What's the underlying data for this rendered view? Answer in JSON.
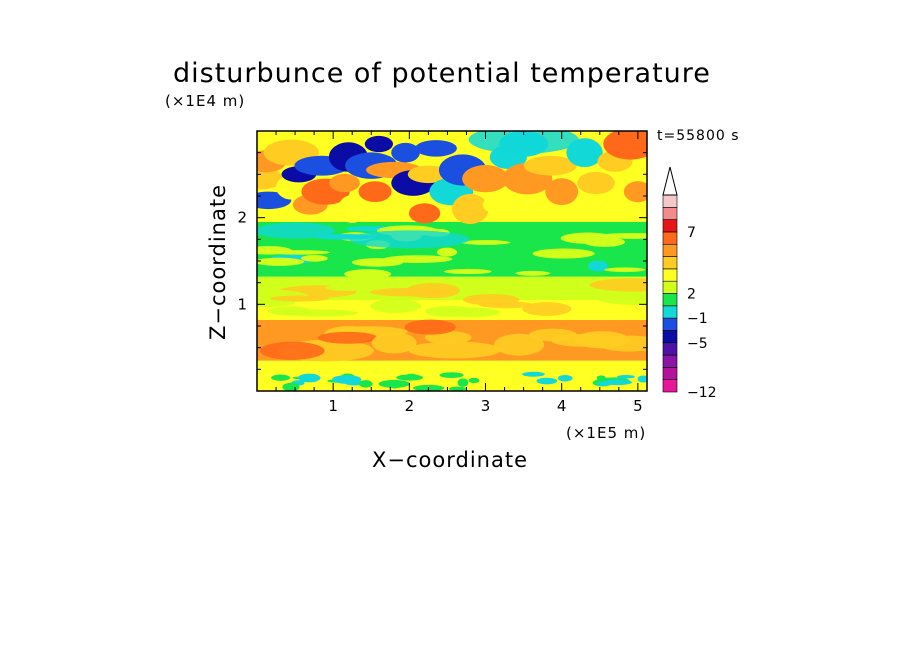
{
  "chart_data": {
    "type": "heatmap",
    "title": "disturbunce of potential temperature",
    "time_label": "t=55800 s",
    "xlabel": "X−coordinate",
    "ylabel": "Z−coordinate",
    "x_multiplier": "(×1E5 m)",
    "y_multiplier": "(×1E4 m)",
    "xlim": [
      0,
      5.12
    ],
    "ylim": [
      0,
      3.0
    ],
    "x_ticks": [
      "1",
      "2",
      "3",
      "4",
      "5"
    ],
    "y_ticks": [
      "1",
      "2"
    ],
    "colorbar": {
      "levels": [
        "-12",
        "-5",
        "-1",
        "2",
        "7"
      ],
      "colors": [
        "#e8179a",
        "#b4119c",
        "#8a14a8",
        "#4f12a6",
        "#0b0ba6",
        "#1a4fe0",
        "#12d8d8",
        "#18e64a",
        "#d0ff1c",
        "#ffff22",
        "#ffcc22",
        "#ff9922",
        "#ff6a1a",
        "#e61616",
        "#f28c8c",
        "#f5c8c8"
      ],
      "extend_max": true
    },
    "field": {
      "description_rows": "contour layers from bottom to top",
      "layers": [
        {
          "z_range": [
            0.0,
            0.15
          ],
          "dominant": "yellow / green mix"
        },
        {
          "z_range": [
            0.15,
            0.35
          ],
          "dominant": "yellow"
        },
        {
          "z_range": [
            0.35,
            0.8
          ],
          "dominant": "orange"
        },
        {
          "z_range": [
            0.8,
            1.3
          ],
          "dominant": "yellow"
        },
        {
          "z_range": [
            1.3,
            1.9
          ],
          "dominant": "green"
        },
        {
          "z_range": [
            1.9,
            3.0
          ],
          "dominant": "alternating blue / orange cells"
        }
      ]
    }
  }
}
